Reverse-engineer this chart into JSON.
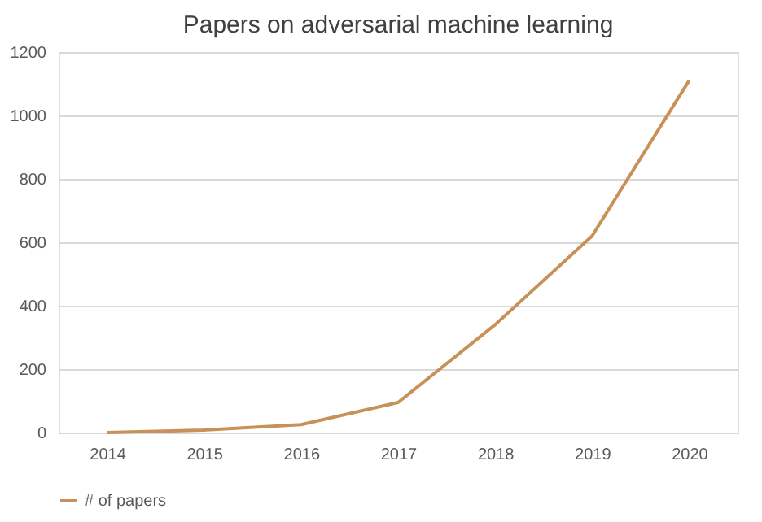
{
  "chart_data": {
    "type": "line",
    "title": "Papers on adversarial machine learning",
    "categories": [
      "2014",
      "2015",
      "2016",
      "2017",
      "2018",
      "2019",
      "2020"
    ],
    "series": [
      {
        "name": "# of papers",
        "color": "#c8915a",
        "values": [
          0,
          8,
          25,
          95,
          340,
          620,
          1110
        ]
      }
    ],
    "ylim": [
      0,
      1200
    ],
    "yticks": [
      0,
      200,
      400,
      600,
      800,
      1000,
      1200
    ],
    "grid": "y",
    "legend": "bottom",
    "marker": "none",
    "line_style": "solid"
  }
}
